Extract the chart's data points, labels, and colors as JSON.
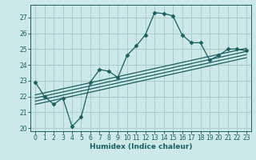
{
  "title": "",
  "xlabel": "Humidex (Indice chaleur)",
  "bg_color": "#cce8e8",
  "grid_color": "#aacccc",
  "line_color": "#1a6060",
  "xlim": [
    -0.5,
    23.5
  ],
  "ylim": [
    19.8,
    27.8
  ],
  "yticks": [
    20,
    21,
    22,
    23,
    24,
    25,
    26,
    27
  ],
  "xticks": [
    0,
    1,
    2,
    3,
    4,
    5,
    6,
    7,
    8,
    9,
    10,
    11,
    12,
    13,
    14,
    15,
    16,
    17,
    18,
    19,
    20,
    21,
    22,
    23
  ],
  "scatter_x": [
    0,
    1,
    2,
    3,
    4,
    5,
    6,
    7,
    8,
    9,
    10,
    11,
    12,
    13,
    14,
    15,
    16,
    17,
    18,
    19,
    20,
    21,
    22,
    23
  ],
  "scatter_y": [
    22.9,
    22.0,
    21.5,
    21.9,
    20.1,
    20.7,
    22.9,
    23.7,
    23.6,
    23.2,
    24.6,
    25.2,
    25.9,
    27.3,
    27.25,
    27.1,
    25.9,
    25.4,
    25.4,
    24.3,
    24.6,
    25.0,
    25.0,
    24.9
  ],
  "regression_lines": [
    {
      "x0": 0,
      "y0": 22.1,
      "x1": 23,
      "y1": 25.05
    },
    {
      "x0": 0,
      "y0": 21.9,
      "x1": 23,
      "y1": 24.85
    },
    {
      "x0": 0,
      "y0": 21.7,
      "x1": 23,
      "y1": 24.65
    },
    {
      "x0": 0,
      "y0": 21.5,
      "x1": 23,
      "y1": 24.45
    }
  ],
  "tick_fontsize": 5.5,
  "xlabel_fontsize": 6.5,
  "marker_size": 2.5,
  "line_width": 0.9
}
